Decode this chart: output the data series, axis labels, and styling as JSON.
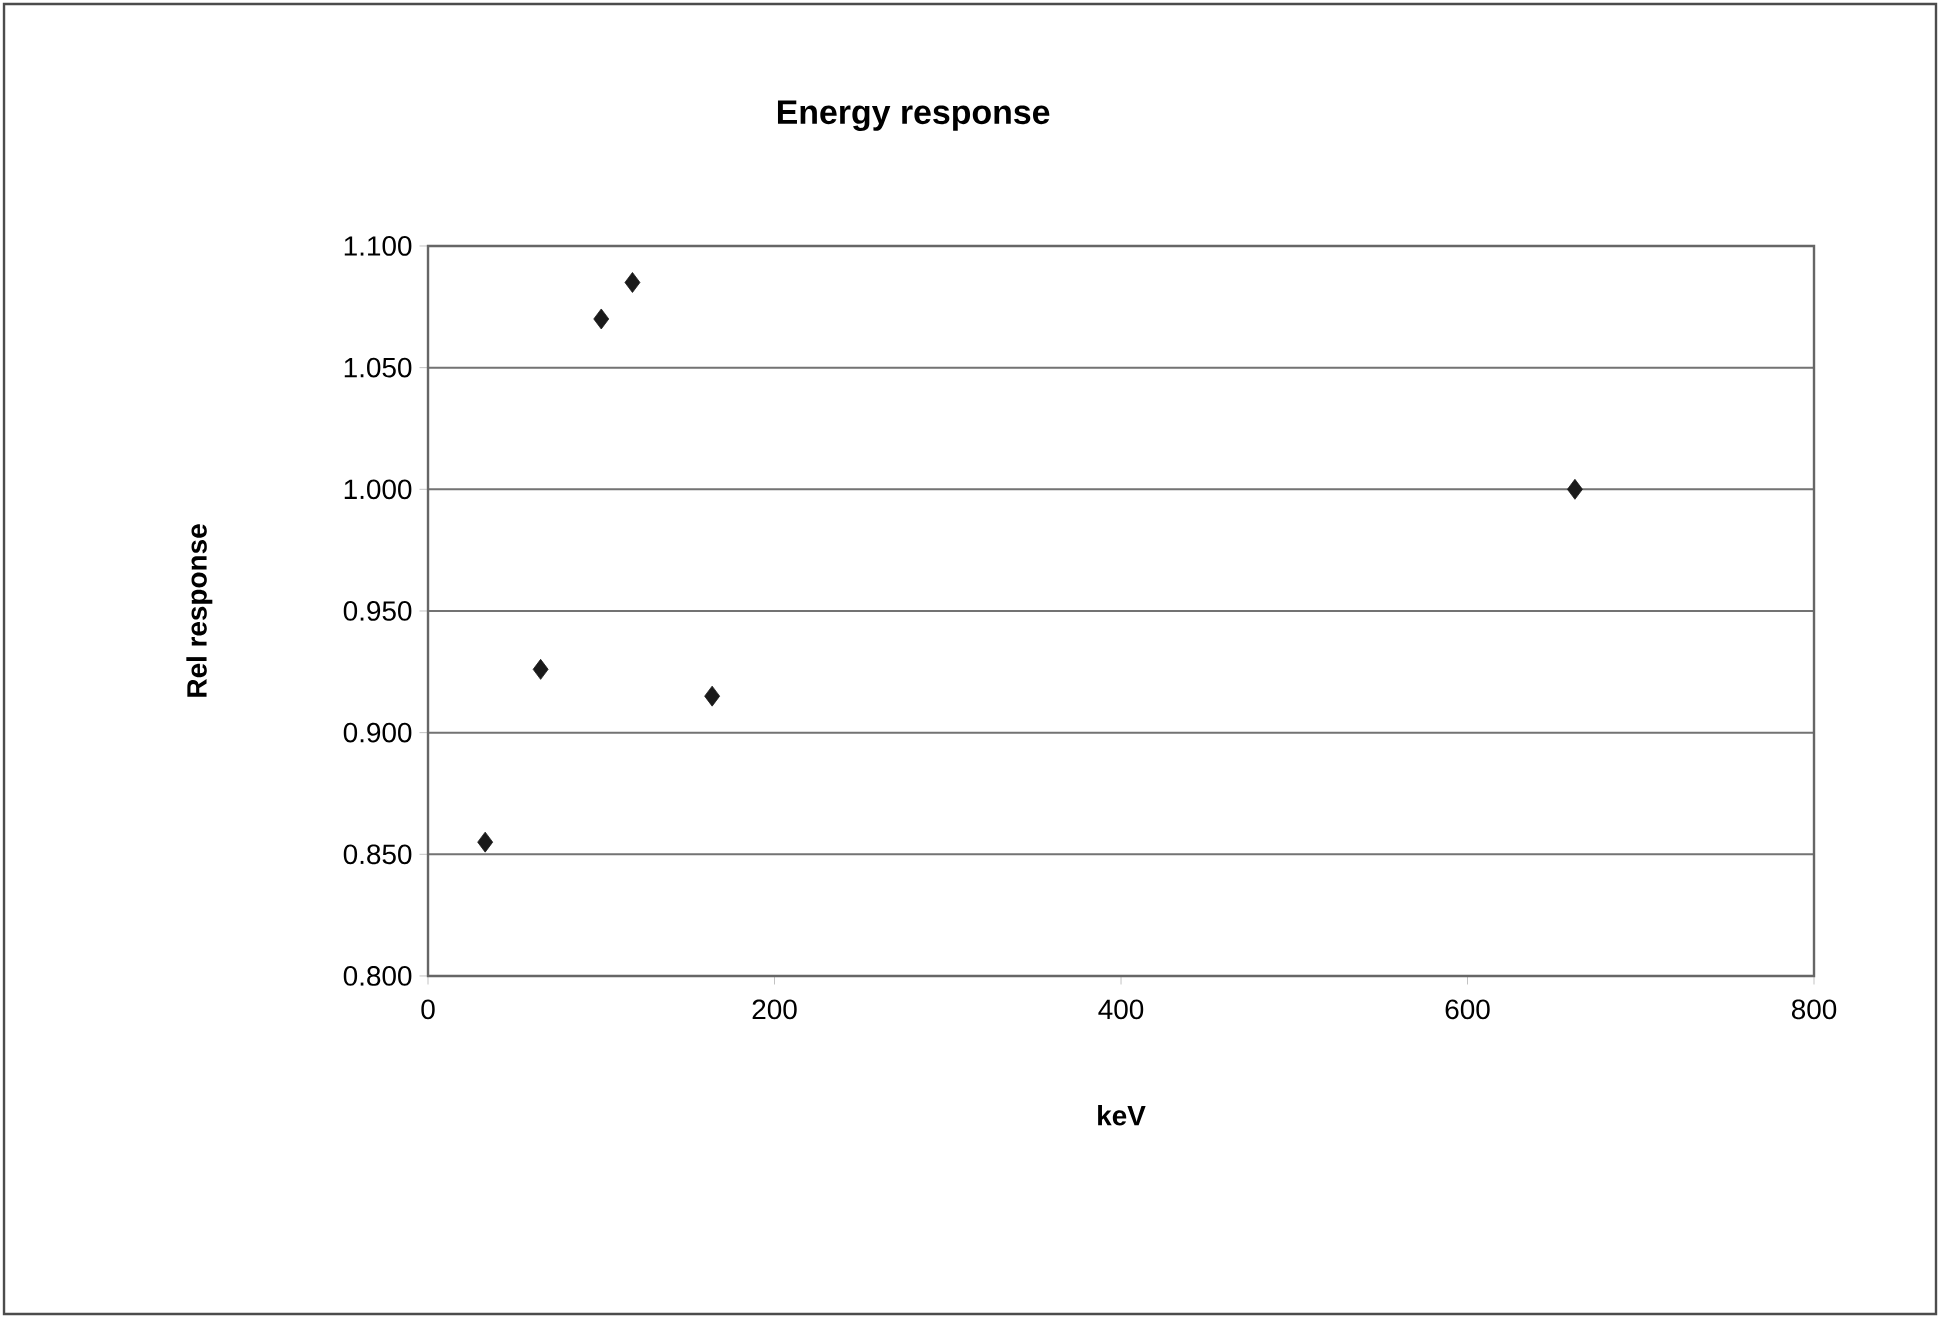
{
  "chart_data": {
    "type": "scatter",
    "title": "Energy response",
    "xlabel": "keV",
    "ylabel": "Rel response",
    "x": [
      33,
      65,
      100,
      118,
      164,
      662
    ],
    "values": [
      0.855,
      0.926,
      1.07,
      1.085,
      0.915,
      1.0
    ],
    "color": "#1a1a1a",
    "marker": "diamond",
    "xlim": [
      0,
      800
    ],
    "xticks": [
      0,
      200,
      400,
      600,
      800
    ],
    "ylim": [
      0.8,
      1.1
    ],
    "yticks": [
      {
        "value": 0.8,
        "label": "0.800"
      },
      {
        "value": 0.85,
        "label": "0.850"
      },
      {
        "value": 0.9,
        "label": "0.900"
      },
      {
        "value": 0.95,
        "label": "0.950"
      },
      {
        "value": 1.0,
        "label": "1.000"
      },
      {
        "value": 1.05,
        "label": "1.050"
      },
      {
        "value": 1.1,
        "label": "1.100"
      }
    ],
    "grid": "y"
  }
}
